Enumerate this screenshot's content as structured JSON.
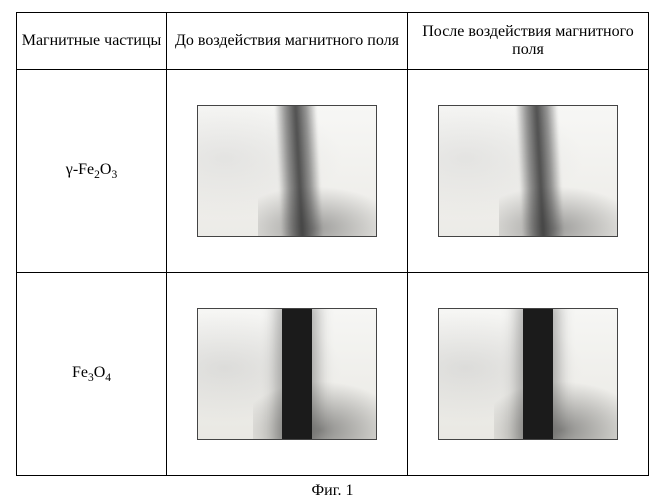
{
  "table": {
    "headers": {
      "col1": "Магнитные частицы",
      "col2": "До воздействия магнитного поля",
      "col3": "После воздействия магнитного поля"
    },
    "rows": [
      {
        "label_html": "γ-Fe<sub>2</sub>O<sub>3</sub>",
        "variant": "A",
        "band_color": "#464646",
        "background_color": "#f6f6f4"
      },
      {
        "label_html": "Fe<sub>3</sub>O<sub>4</sub>",
        "variant": "B",
        "band_color": "#1b1b1b",
        "background_color": "#f6f6f4"
      }
    ]
  },
  "caption": "Фиг. 1",
  "style": {
    "border_color": "#000000",
    "font_family": "Times New Roman",
    "font_size_pt": 12,
    "page_bg": "#ffffff"
  }
}
